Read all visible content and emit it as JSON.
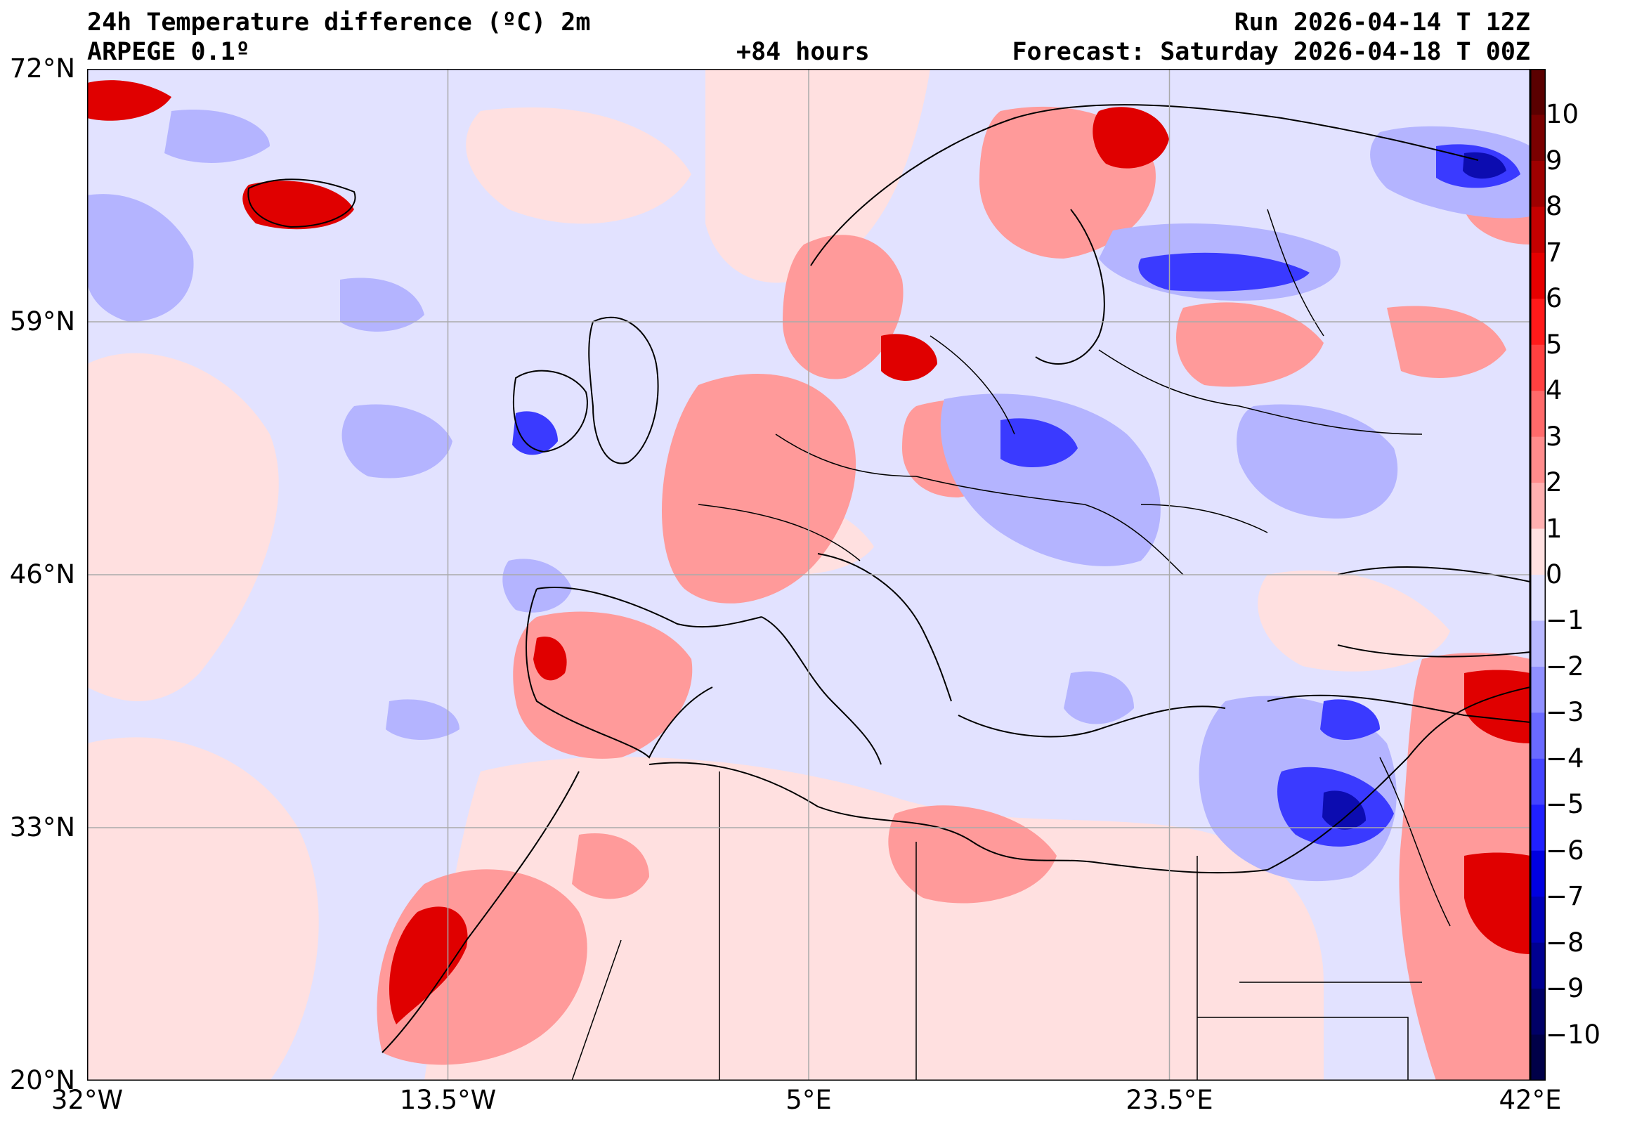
{
  "title": {
    "left_line1": "24h Temperature difference (ºC) 2m",
    "left_line2": "ARPEGE 0.1º",
    "center": "+84 hours",
    "right_line1": "Run 2026-04-14 T 12Z",
    "right_line2": "Forecast: Saturday 2026-04-18 T 00Z"
  },
  "axes": {
    "lat_labels": [
      "72°N",
      "59°N",
      "46°N",
      "33°N",
      "20°N"
    ],
    "lon_labels": [
      "32°W",
      "13.5°W",
      "5°E",
      "23.5°E",
      "42°E"
    ],
    "lat_values": [
      72,
      59,
      46,
      33,
      20
    ],
    "lon_values": [
      -32,
      -13.5,
      5,
      23.5,
      42
    ]
  },
  "colorbar": {
    "labels": [
      "10",
      "9",
      "8",
      "7",
      "6",
      "5",
      "4",
      "3",
      "2",
      "1",
      "0",
      "−1",
      "−2",
      "−3",
      "−4",
      "−5",
      "−6",
      "−7",
      "−8",
      "−9",
      "−10"
    ],
    "values": [
      10,
      9,
      8,
      7,
      6,
      5,
      4,
      3,
      2,
      1,
      0,
      -1,
      -2,
      -3,
      -4,
      -5,
      -6,
      -7,
      -8,
      -9,
      -10
    ],
    "colors": [
      "#5a0000",
      "#7a0000",
      "#9e0000",
      "#c40000",
      "#e50000",
      "#ff1a1a",
      "#ff4040",
      "#ff6a6a",
      "#ff8c8c",
      "#ffb0b0",
      "#ffe0e0",
      "#e2e2ff",
      "#b8b8ff",
      "#9090ff",
      "#6a6aff",
      "#4444ff",
      "#2020ff",
      "#0000e0",
      "#0000b8",
      "#000090",
      "#000066",
      "#000048"
    ]
  },
  "colors": {
    "ocean_base": "#e2e2ff",
    "light_warm": "#ffe0e0",
    "warm": "#ff8c8c",
    "hot": "#e50000",
    "cool": "#b8b8ff",
    "cold": "#5a5aff",
    "very_cold": "#1010c8",
    "coast": "#000000",
    "grid": "#aaaaaa"
  }
}
